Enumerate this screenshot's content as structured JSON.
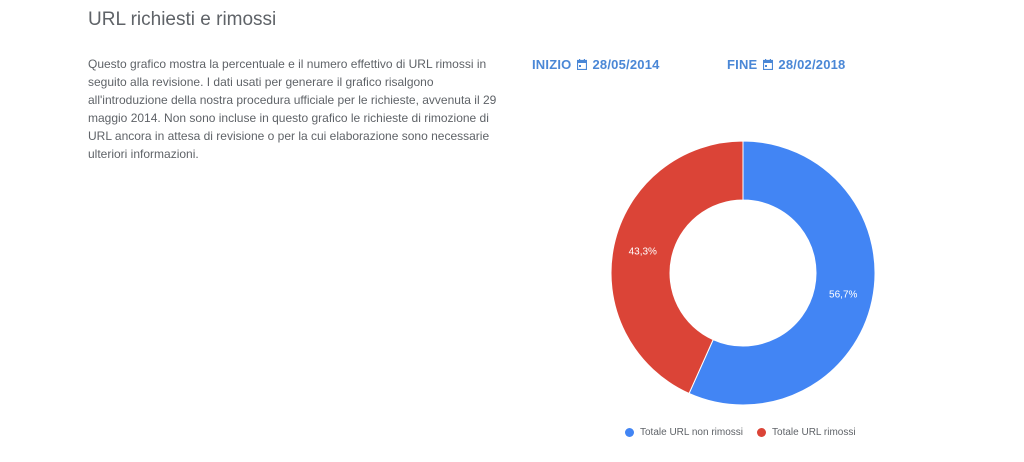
{
  "header": {
    "title": "URL richiesti e rimossi"
  },
  "description": "Questo grafico mostra la percentuale e il numero effettivo di URL rimossi in seguito alla revisione. I dati usati per generare il grafico risalgono all'introduzione della nostra procedura ufficiale per le richieste, avvenuta il 29 maggio 2014. Non sono incluse in questo grafico le richieste di rimozione di URL ancora in attesa di revisione o per la cui elaborazione sono necessarie ulteriori informazioni.",
  "date_range": {
    "start_label": "INIZIO",
    "start_value": "28/05/2014",
    "end_label": "FINE",
    "end_value": "28/02/2018",
    "icon": "calendar-icon"
  },
  "colors": {
    "accent": "#4a87d6",
    "not_removed": "#4285f4",
    "removed": "#db4437",
    "text": "#5f6368"
  },
  "chart_data": {
    "type": "pie",
    "donut": true,
    "slices": [
      {
        "name": "Totale URL non rimossi",
        "value": 56.7,
        "label": "56,7%",
        "color": "#4285f4"
      },
      {
        "name": "Totale URL rimossi",
        "value": 43.3,
        "label": "43,3%",
        "color": "#db4437"
      }
    ],
    "legend_position": "bottom"
  }
}
